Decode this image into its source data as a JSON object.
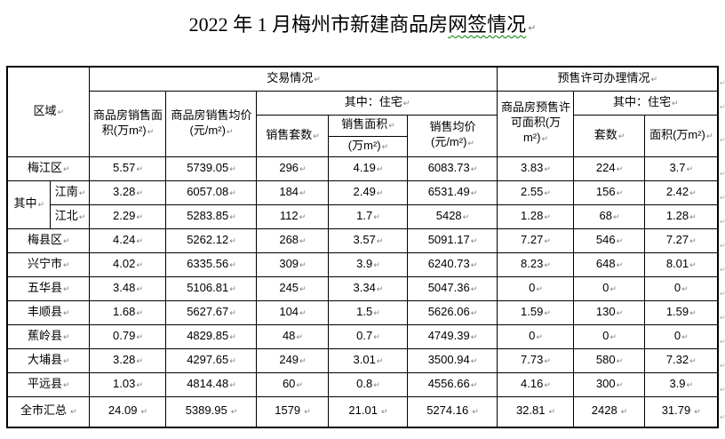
{
  "page": {
    "title_main": "2022 年 1 月梅州市新建商品房",
    "title_underlined": "网签情况"
  },
  "marks": {
    "cell_end": "↵"
  },
  "colors": {
    "title_underline": "#008000",
    "paragraph_mark": "#808080"
  },
  "table": {
    "header": {
      "region": "区域",
      "transaction": "交易情况",
      "presale": "预售许可办理情况",
      "among_residential": "其中：住宅",
      "sales_area_total": "商品房销售面积(万m²)",
      "sales_price_total": "商品房销售均价(元/m²)",
      "sales_units": "销售套数",
      "sales_area_res_line1": "销售面积",
      "sales_area_res_line2": "(万m²)",
      "sales_price_res": "销售均价(元/m²)",
      "presale_area": "商品房预售许可面积(万m²)",
      "presale_units": "套数",
      "presale_area_res": "面积(万m²)"
    },
    "group_label": "其中",
    "rows": [
      {
        "region": "梅江区",
        "values": [
          "5.57",
          "5739.05",
          "296",
          "4.19",
          "6083.73",
          "3.83",
          "224",
          "3.7"
        ]
      },
      {
        "region": "江南",
        "values": [
          "3.28",
          "6057.08",
          "184",
          "2.49",
          "6531.49",
          "2.55",
          "156",
          "2.42"
        ]
      },
      {
        "region": "江北",
        "values": [
          "2.29",
          "5283.85",
          "112",
          "1.7",
          "5428",
          "1.28",
          "68",
          "1.28"
        ]
      },
      {
        "region": "梅县区",
        "values": [
          "4.24",
          "5262.12",
          "268",
          "3.57",
          "5091.17",
          "7.27",
          "546",
          "7.27"
        ]
      },
      {
        "region": "兴宁市",
        "values": [
          "4.02",
          "6335.56",
          "309",
          "3.9",
          "6240.73",
          "8.23",
          "648",
          "8.01"
        ]
      },
      {
        "region": "五华县",
        "values": [
          "3.48",
          "5106.81",
          "245",
          "3.34",
          "5047.36",
          "0",
          "0",
          "0"
        ]
      },
      {
        "region": "丰顺县",
        "values": [
          "1.68",
          "5627.67",
          "104",
          "1.5",
          "5626.06",
          "1.59",
          "130",
          "1.59"
        ]
      },
      {
        "region": "蕉岭县",
        "values": [
          "0.79",
          "4829.85",
          "48",
          "0.7",
          "4749.39",
          "0",
          "0",
          "0"
        ]
      },
      {
        "region": "大埔县",
        "values": [
          "3.28",
          "4297.65",
          "249",
          "3.01",
          "3500.94",
          "7.73",
          "580",
          "7.32"
        ]
      },
      {
        "region": "平远县",
        "values": [
          "1.03",
          "4814.48",
          "60",
          "0.8",
          "4556.66",
          "4.16",
          "300",
          "3.9"
        ]
      },
      {
        "region": "全市汇总",
        "values": [
          "24.09",
          "5389.95",
          "1579",
          "21.01",
          "5274.16",
          "32.81",
          "2428",
          "31.79"
        ]
      }
    ]
  }
}
